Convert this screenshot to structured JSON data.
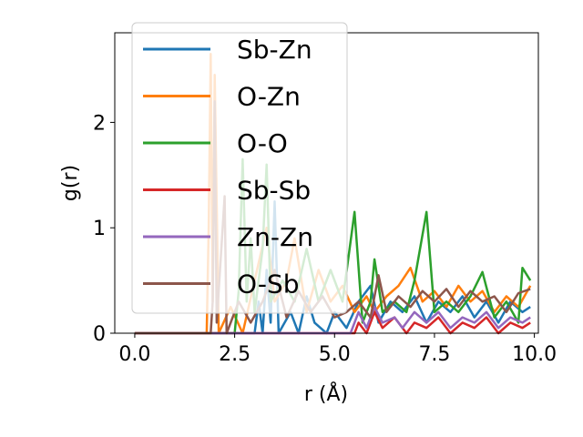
{
  "chart_data": {
    "type": "line",
    "xlabel": "r (Å)",
    "ylabel": "g(r)",
    "xlim": [
      -0.5,
      10.1
    ],
    "ylim": [
      0,
      2.85
    ],
    "xticks": [
      0.0,
      2.5,
      5.0,
      7.5,
      10.0
    ],
    "xtick_labels": [
      "0.0",
      "2.5",
      "5.0",
      "7.5",
      "10.0"
    ],
    "yticks": [
      0,
      1,
      2
    ],
    "ytick_labels": [
      "0",
      "1",
      "2"
    ],
    "legend_position": "upper-left",
    "grid": false,
    "series": [
      {
        "name": "Sb-Zn",
        "color": "#1f77b4",
        "points": [
          [
            0,
            0
          ],
          [
            3.0,
            0
          ],
          [
            3.1,
            0.3
          ],
          [
            3.2,
            0
          ],
          [
            3.3,
            0.6
          ],
          [
            3.4,
            0.1
          ],
          [
            3.5,
            1.25
          ],
          [
            3.6,
            0
          ],
          [
            3.9,
            0.2
          ],
          [
            4.1,
            0
          ],
          [
            4.3,
            0.35
          ],
          [
            4.5,
            0.1
          ],
          [
            4.8,
            0
          ],
          [
            5.0,
            0.2
          ],
          [
            5.3,
            0.05
          ],
          [
            5.6,
            0.3
          ],
          [
            5.9,
            0.45
          ],
          [
            6.1,
            0.1
          ],
          [
            6.4,
            0.3
          ],
          [
            6.7,
            0.2
          ],
          [
            7.0,
            0.35
          ],
          [
            7.3,
            0.1
          ],
          [
            7.6,
            0.3
          ],
          [
            7.9,
            0.2
          ],
          [
            8.2,
            0.35
          ],
          [
            8.5,
            0.15
          ],
          [
            8.8,
            0.3
          ],
          [
            9.1,
            0.1
          ],
          [
            9.4,
            0.3
          ],
          [
            9.7,
            0.2
          ],
          [
            9.9,
            0.25
          ]
        ]
      },
      {
        "name": "O-Zn",
        "color": "#ff7f0e",
        "points": [
          [
            0,
            0
          ],
          [
            1.8,
            0
          ],
          [
            1.85,
            1.0
          ],
          [
            1.9,
            2.65
          ],
          [
            1.95,
            0.3
          ],
          [
            2.0,
            2.45
          ],
          [
            2.1,
            0
          ],
          [
            2.4,
            0.25
          ],
          [
            2.7,
            0
          ],
          [
            3.0,
            0.5
          ],
          [
            3.3,
            1.0
          ],
          [
            3.5,
            0.3
          ],
          [
            3.8,
            0.5
          ],
          [
            4.0,
            0.9
          ],
          [
            4.3,
            0.2
          ],
          [
            4.6,
            0.6
          ],
          [
            4.9,
            0.3
          ],
          [
            5.2,
            0.45
          ],
          [
            5.5,
            0.2
          ],
          [
            5.8,
            0.35
          ],
          [
            6.0,
            0.2
          ],
          [
            6.3,
            0.35
          ],
          [
            6.6,
            0.45
          ],
          [
            6.9,
            0.62
          ],
          [
            7.2,
            0.3
          ],
          [
            7.5,
            0.4
          ],
          [
            7.8,
            0.25
          ],
          [
            8.1,
            0.45
          ],
          [
            8.4,
            0.3
          ],
          [
            8.7,
            0.4
          ],
          [
            9.0,
            0.2
          ],
          [
            9.3,
            0.35
          ],
          [
            9.6,
            0.25
          ],
          [
            9.9,
            0.45
          ]
        ]
      },
      {
        "name": "O-O",
        "color": "#2ca02c",
        "points": [
          [
            0,
            0
          ],
          [
            2.5,
            0
          ],
          [
            2.6,
            0.4
          ],
          [
            2.7,
            1.65
          ],
          [
            2.8,
            0.3
          ],
          [
            2.9,
            0.9
          ],
          [
            3.0,
            0.2
          ],
          [
            3.2,
            0.8
          ],
          [
            3.3,
            1.6
          ],
          [
            3.4,
            0.3
          ],
          [
            3.7,
            0.5
          ],
          [
            4.0,
            0.3
          ],
          [
            4.3,
            0.8
          ],
          [
            4.6,
            0.3
          ],
          [
            4.9,
            0.6
          ],
          [
            5.2,
            0.3
          ],
          [
            5.5,
            1.15
          ],
          [
            5.7,
            0.1
          ],
          [
            5.9,
            0.3
          ],
          [
            6.0,
            0.7
          ],
          [
            6.2,
            0.2
          ],
          [
            6.5,
            0.3
          ],
          [
            6.8,
            0.2
          ],
          [
            7.0,
            0.5
          ],
          [
            7.3,
            1.15
          ],
          [
            7.5,
            0.2
          ],
          [
            7.8,
            0.3
          ],
          [
            8.1,
            0.2
          ],
          [
            8.4,
            0.35
          ],
          [
            8.7,
            0.58
          ],
          [
            9.0,
            0.15
          ],
          [
            9.3,
            0.3
          ],
          [
            9.6,
            0.1
          ],
          [
            9.7,
            0.62
          ],
          [
            9.9,
            0.5
          ]
        ]
      },
      {
        "name": "Sb-Sb",
        "color": "#d62728",
        "points": [
          [
            0,
            0
          ],
          [
            5.5,
            0
          ],
          [
            5.6,
            0.1
          ],
          [
            5.8,
            0.0
          ],
          [
            6.0,
            0.2
          ],
          [
            6.2,
            0.05
          ],
          [
            6.5,
            0.15
          ],
          [
            6.8,
            0.0
          ],
          [
            7.0,
            0.1
          ],
          [
            7.3,
            0.05
          ],
          [
            7.6,
            0.15
          ],
          [
            7.9,
            0.0
          ],
          [
            8.2,
            0.1
          ],
          [
            8.5,
            0.05
          ],
          [
            8.8,
            0.15
          ],
          [
            9.1,
            0.0
          ],
          [
            9.4,
            0.1
          ],
          [
            9.7,
            0.05
          ],
          [
            9.9,
            0.1
          ]
        ]
      },
      {
        "name": "Zn-Zn",
        "color": "#9467bd",
        "points": [
          [
            0,
            0
          ],
          [
            5.4,
            0
          ],
          [
            5.6,
            0.2
          ],
          [
            5.8,
            0.05
          ],
          [
            6.0,
            0.25
          ],
          [
            6.2,
            0.1
          ],
          [
            6.5,
            0.15
          ],
          [
            6.7,
            0.05
          ],
          [
            7.0,
            0.2
          ],
          [
            7.3,
            0.1
          ],
          [
            7.6,
            0.2
          ],
          [
            7.9,
            0.05
          ],
          [
            8.2,
            0.15
          ],
          [
            8.5,
            0.1
          ],
          [
            8.8,
            0.2
          ],
          [
            9.1,
            0.05
          ],
          [
            9.4,
            0.15
          ],
          [
            9.7,
            0.1
          ],
          [
            9.9,
            0.15
          ]
        ]
      },
      {
        "name": "O-Sb",
        "color": "#8c564b",
        "points": [
          [
            0,
            0
          ],
          [
            1.9,
            0
          ],
          [
            1.95,
            0.3
          ],
          [
            2.0,
            2.2
          ],
          [
            2.05,
            0.1
          ],
          [
            2.25,
            1.3
          ],
          [
            2.3,
            0
          ],
          [
            2.6,
            0.3
          ],
          [
            2.9,
            0.1
          ],
          [
            3.2,
            0.3
          ],
          [
            3.5,
            0.6
          ],
          [
            3.8,
            0.15
          ],
          [
            4.1,
            0.4
          ],
          [
            4.4,
            0.2
          ],
          [
            4.7,
            0.35
          ],
          [
            5.0,
            0.15
          ],
          [
            5.3,
            0.2
          ],
          [
            5.6,
            0.3
          ],
          [
            5.9,
            0.15
          ],
          [
            6.1,
            0.55
          ],
          [
            6.3,
            0.2
          ],
          [
            6.6,
            0.35
          ],
          [
            6.9,
            0.25
          ],
          [
            7.2,
            0.4
          ],
          [
            7.5,
            0.3
          ],
          [
            7.8,
            0.42
          ],
          [
            8.1,
            0.25
          ],
          [
            8.4,
            0.4
          ],
          [
            8.7,
            0.3
          ],
          [
            9.0,
            0.35
          ],
          [
            9.3,
            0.2
          ],
          [
            9.6,
            0.38
          ],
          [
            9.9,
            0.42
          ]
        ]
      }
    ]
  }
}
